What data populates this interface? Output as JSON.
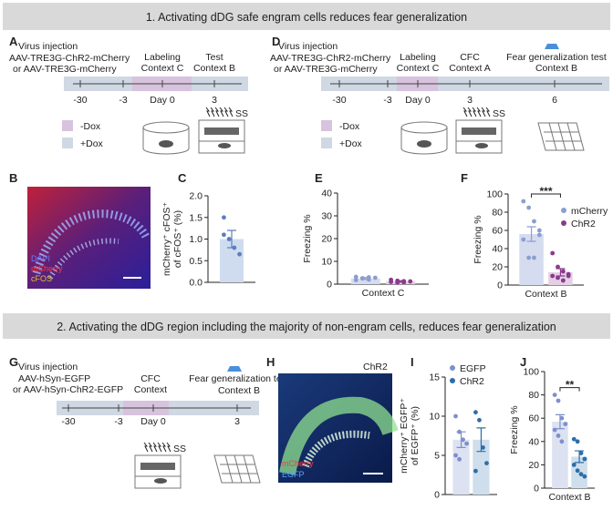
{
  "section_1": {
    "title": "1. Activating dDG safe engram cells reduces fear generalization"
  },
  "panel_a": {
    "letter": "A",
    "virus": [
      "Virus injection",
      "AAV-TRE3G-ChR2-mCherry",
      "or AAV-TRE3G-mCherry"
    ],
    "events": [
      [
        "Labeling",
        "Context C"
      ],
      [
        "Test",
        "Context B"
      ]
    ],
    "days": [
      "-30",
      "-3",
      "Day 0",
      "3"
    ],
    "legend": [
      "-Dox",
      "+Dox"
    ],
    "shock": "SS"
  },
  "panel_d": {
    "letter": "D",
    "virus": [
      "Virus injection",
      "AAV-TRE3G-ChR2-mCherry",
      "or AAV-TRE3G-mCherry"
    ],
    "events": [
      [
        "Labeling",
        "Context C"
      ],
      [
        "CFC",
        "Context A"
      ],
      [
        "Fear generalization test",
        "Context B"
      ]
    ],
    "days": [
      "-30",
      "-3",
      "Day 0",
      "3",
      "6"
    ],
    "legend": [
      "-Dox",
      "+Dox"
    ],
    "shock": "SS"
  },
  "panel_b": {
    "letter": "B",
    "channels": [
      "DAPI",
      "mCherry",
      "cFOS"
    ]
  },
  "panel_c": {
    "letter": "C"
  },
  "panel_e": {
    "letter": "E"
  },
  "panel_f": {
    "letter": "F"
  },
  "section_2": {
    "title": "2. Activating the dDG region including the majority of non-engram cells, reduces fear generalization"
  },
  "panel_g": {
    "letter": "G",
    "virus": [
      "Virus injection",
      "AAV-hSyn-EGFP",
      "or AAV-hSyn-ChR2-EGFP"
    ],
    "events": [
      [
        "CFC",
        "Context"
      ],
      [
        "Fear generalization test",
        "Context B"
      ]
    ],
    "days": [
      "-30",
      "-3",
      "Day 0",
      "3"
    ],
    "shock": "SS"
  },
  "panel_h": {
    "letter": "H",
    "group": "ChR2",
    "channels": [
      "mCherry",
      "EGFP"
    ]
  },
  "panel_i": {
    "letter": "I"
  },
  "panel_j": {
    "letter": "J"
  },
  "chart_data": [
    {
      "type": "bar",
      "ylabel": [
        "mCherry⁺ cFOS⁺",
        "of cFOS⁺ (%)"
      ],
      "categories": [
        null
      ],
      "ylim": [
        0,
        2
      ],
      "yticks": [
        {
          "value": 0,
          "label": "0.0"
        },
        0.5,
        {
          "value": 1,
          "label": "1.0"
        },
        1.5,
        {
          "value": 2,
          "label": "2.0"
        }
      ],
      "series": [
        {
          "color": "#5b7fc0",
          "fill": "#cfdcef",
          "values": [
            1.0
          ],
          "errors": [
            0.2
          ],
          "points": [
            [
              1.5,
              1.0,
              0.8,
              0.65,
              1.1
            ]
          ]
        }
      ]
    },
    {
      "type": "bar",
      "ylabel": [
        "Freezing %"
      ],
      "categories": [
        "Context C"
      ],
      "ylim": [
        0,
        40
      ],
      "yticks": [
        0,
        10,
        20,
        30,
        40
      ],
      "series": [
        {
          "color": "#8a9ed0",
          "fill": "#d6dcef",
          "values": [
            2.5
          ],
          "errors": [
            0.4
          ],
          "points": [
            [
              3.2,
              2.5,
              2.0,
              2.8,
              1.8,
              2.6,
              3.0
            ]
          ]
        },
        {
          "color": "#8b3a8b",
          "fill": "#e4d0e6",
          "values": [
            1.2
          ],
          "errors": [
            0.3
          ],
          "points": [
            [
              1.0,
              1.5,
              0.8,
              1.2,
              1.9,
              0.6,
              1.3
            ]
          ]
        }
      ]
    },
    {
      "type": "bar",
      "ylabel": [
        "Freezing %"
      ],
      "categories": [
        "Context B"
      ],
      "ylim": [
        0,
        100
      ],
      "yticks": [
        0,
        20,
        40,
        60,
        80,
        100
      ],
      "annotation": "***",
      "legend": "upper right",
      "series": [
        {
          "name": "mCherry",
          "color": "#8a9ed0",
          "fill": "#d6dcef",
          "values": [
            56
          ],
          "errors": [
            8
          ],
          "points": [
            [
              92,
              85,
              70,
              55,
              50,
              30,
              30,
              60
            ]
          ]
        },
        {
          "name": "ChR2",
          "color": "#8b3a8b",
          "fill": "#e4d0e6",
          "values": [
            14
          ],
          "errors": [
            4
          ],
          "points": [
            [
              35,
              20,
              15,
              10,
              10,
              8,
              5,
              12
            ]
          ]
        }
      ]
    },
    {
      "type": "bar",
      "ylabel": [
        "mCherry⁺ EGFP⁺",
        "of EGFP⁺ (%)"
      ],
      "categories": [
        null
      ],
      "ylim": [
        0,
        15
      ],
      "yticks": [
        0,
        5,
        10,
        15
      ],
      "legend": "upper left",
      "series": [
        {
          "name": "EGFP",
          "color": "#7d8fcc",
          "fill": "#dde2f2",
          "values": [
            7.0
          ],
          "errors": [
            1.0
          ],
          "points": [
            [
              10,
              8,
              7,
              6.5,
              5,
              4.5
            ]
          ]
        },
        {
          "name": "ChR2",
          "color": "#2b6fa8",
          "fill": "#cfdeed",
          "values": [
            7.0
          ],
          "errors": [
            1.5
          ],
          "points": [
            [
              10.5,
              9.5,
              6,
              4,
              3
            ]
          ]
        }
      ]
    },
    {
      "type": "bar",
      "ylabel": [
        "Freezing %"
      ],
      "categories": [
        "Context B"
      ],
      "ylim": [
        0,
        100
      ],
      "yticks": [
        0,
        20,
        40,
        60,
        80,
        100
      ],
      "annotation": "**",
      "series": [
        {
          "color": "#7d8fcc",
          "fill": "#dde2f2",
          "values": [
            57
          ],
          "errors": [
            6
          ],
          "points": [
            [
              80,
              75,
              60,
              55,
              50,
              45,
              40
            ]
          ]
        },
        {
          "color": "#2b6fa8",
          "fill": "#cfdeed",
          "values": [
            27
          ],
          "errors": [
            5
          ],
          "points": [
            [
              42,
              40,
              30,
              25,
              20,
              15,
              12,
              10
            ]
          ]
        }
      ]
    }
  ]
}
